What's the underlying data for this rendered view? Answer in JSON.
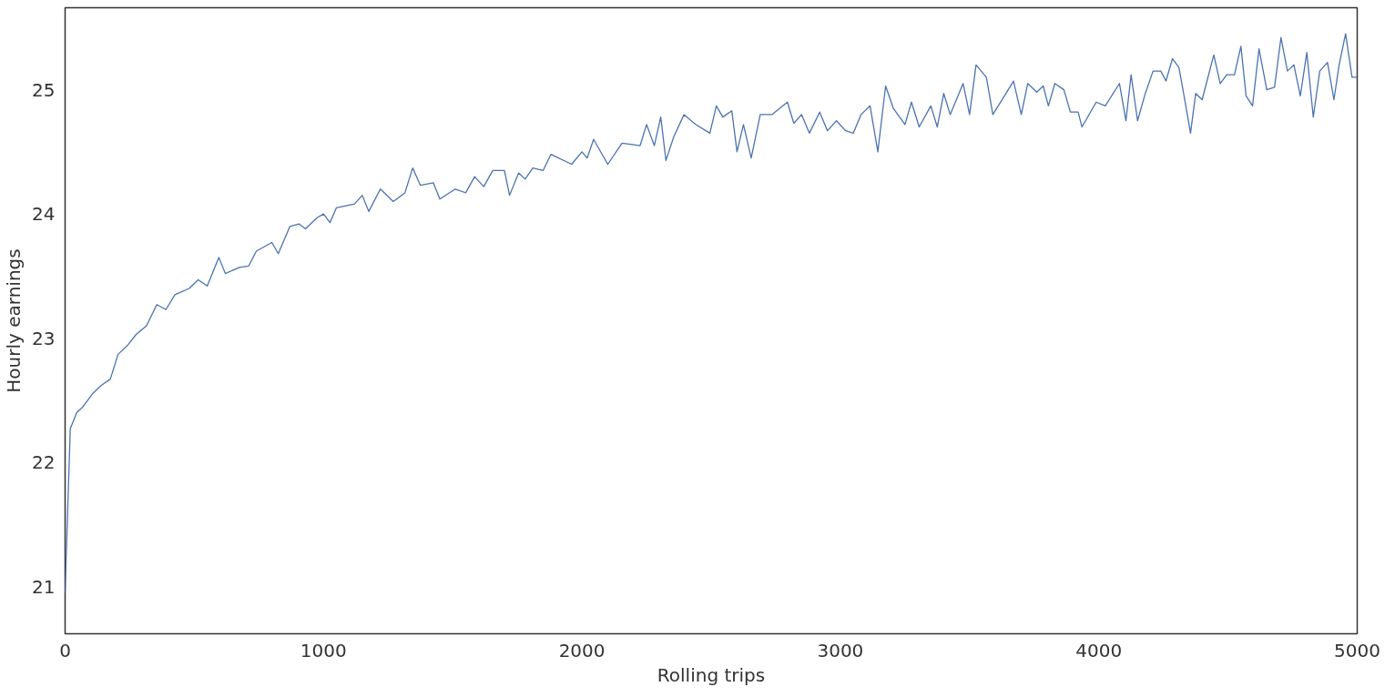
{
  "chart_data": {
    "type": "line",
    "xlabel": "Rolling trips",
    "ylabel": "Hourly earnings",
    "xlim": [
      0,
      5000
    ],
    "ylim": [
      20.62,
      25.66
    ],
    "xticks": [
      0,
      1000,
      2000,
      3000,
      4000,
      5000
    ],
    "yticks": [
      21,
      22,
      23,
      24,
      25
    ],
    "grid": false,
    "series": [
      {
        "color": "#4c72b0",
        "x": [
          0,
          20,
          45,
          70,
          105,
          140,
          175,
          205,
          245,
          275,
          315,
          355,
          390,
          425,
          480,
          515,
          550,
          595,
          620,
          675,
          710,
          740,
          800,
          825,
          870,
          905,
          930,
          975,
          1000,
          1025,
          1050,
          1120,
          1150,
          1175,
          1220,
          1270,
          1315,
          1345,
          1375,
          1425,
          1450,
          1510,
          1550,
          1585,
          1620,
          1655,
          1700,
          1720,
          1755,
          1780,
          1810,
          1850,
          1880,
          1960,
          2000,
          2020,
          2045,
          2100,
          2155,
          2190,
          2225,
          2250,
          2280,
          2305,
          2325,
          2355,
          2395,
          2440,
          2495,
          2520,
          2545,
          2580,
          2600,
          2625,
          2655,
          2690,
          2735,
          2795,
          2820,
          2850,
          2880,
          2920,
          2950,
          2985,
          3020,
          3050,
          3080,
          3115,
          3145,
          3175,
          3205,
          3250,
          3275,
          3305,
          3350,
          3375,
          3400,
          3425,
          3475,
          3500,
          3525,
          3565,
          3590,
          3635,
          3670,
          3700,
          3725,
          3760,
          3785,
          3805,
          3830,
          3865,
          3890,
          3920,
          3935,
          3990,
          4025,
          4080,
          4105,
          4125,
          4150,
          4180,
          4210,
          4240,
          4260,
          4285,
          4310,
          4330,
          4355,
          4375,
          4400,
          4445,
          4470,
          4495,
          4525,
          4550,
          4570,
          4595,
          4620,
          4650,
          4680,
          4705,
          4730,
          4755,
          4780,
          4805,
          4830,
          4855,
          4885,
          4910,
          4930,
          4955,
          4980,
          5000
        ],
        "values": [
          20.95,
          22.27,
          22.4,
          22.45,
          22.55,
          22.62,
          22.67,
          22.87,
          22.95,
          23.03,
          23.1,
          23.27,
          23.23,
          23.35,
          23.4,
          23.47,
          23.42,
          23.65,
          23.52,
          23.57,
          23.58,
          23.7,
          23.77,
          23.68,
          23.9,
          23.92,
          23.88,
          23.97,
          24.0,
          23.93,
          24.05,
          24.08,
          24.15,
          24.02,
          24.2,
          24.1,
          24.17,
          24.37,
          24.23,
          24.25,
          24.12,
          24.2,
          24.17,
          24.3,
          24.22,
          24.35,
          24.35,
          24.15,
          24.33,
          24.28,
          24.37,
          24.35,
          24.48,
          24.4,
          24.5,
          24.45,
          24.6,
          24.4,
          24.57,
          24.56,
          24.55,
          24.72,
          24.55,
          24.78,
          24.43,
          24.62,
          24.8,
          24.72,
          24.65,
          24.87,
          24.78,
          24.83,
          24.5,
          24.72,
          24.45,
          24.8,
          24.8,
          24.9,
          24.73,
          24.8,
          24.65,
          24.82,
          24.67,
          24.75,
          24.67,
          24.65,
          24.8,
          24.87,
          24.5,
          25.03,
          24.85,
          24.72,
          24.9,
          24.7,
          24.87,
          24.7,
          24.97,
          24.8,
          25.05,
          24.8,
          25.2,
          25.1,
          24.8,
          24.95,
          25.07,
          24.8,
          25.05,
          24.98,
          25.03,
          24.87,
          25.05,
          25.0,
          24.82,
          24.82,
          24.7,
          24.9,
          24.87,
          25.05,
          24.75,
          25.12,
          24.75,
          24.97,
          25.15,
          25.15,
          25.07,
          25.25,
          25.18,
          24.95,
          24.65,
          24.97,
          24.92,
          25.28,
          25.05,
          25.12,
          25.12,
          25.35,
          24.95,
          24.87,
          25.33,
          25.0,
          25.02,
          25.42,
          25.15,
          25.2,
          24.95,
          25.3,
          24.78,
          25.15,
          25.22,
          24.92,
          25.2,
          25.45,
          25.1,
          25.1
        ]
      }
    ]
  }
}
